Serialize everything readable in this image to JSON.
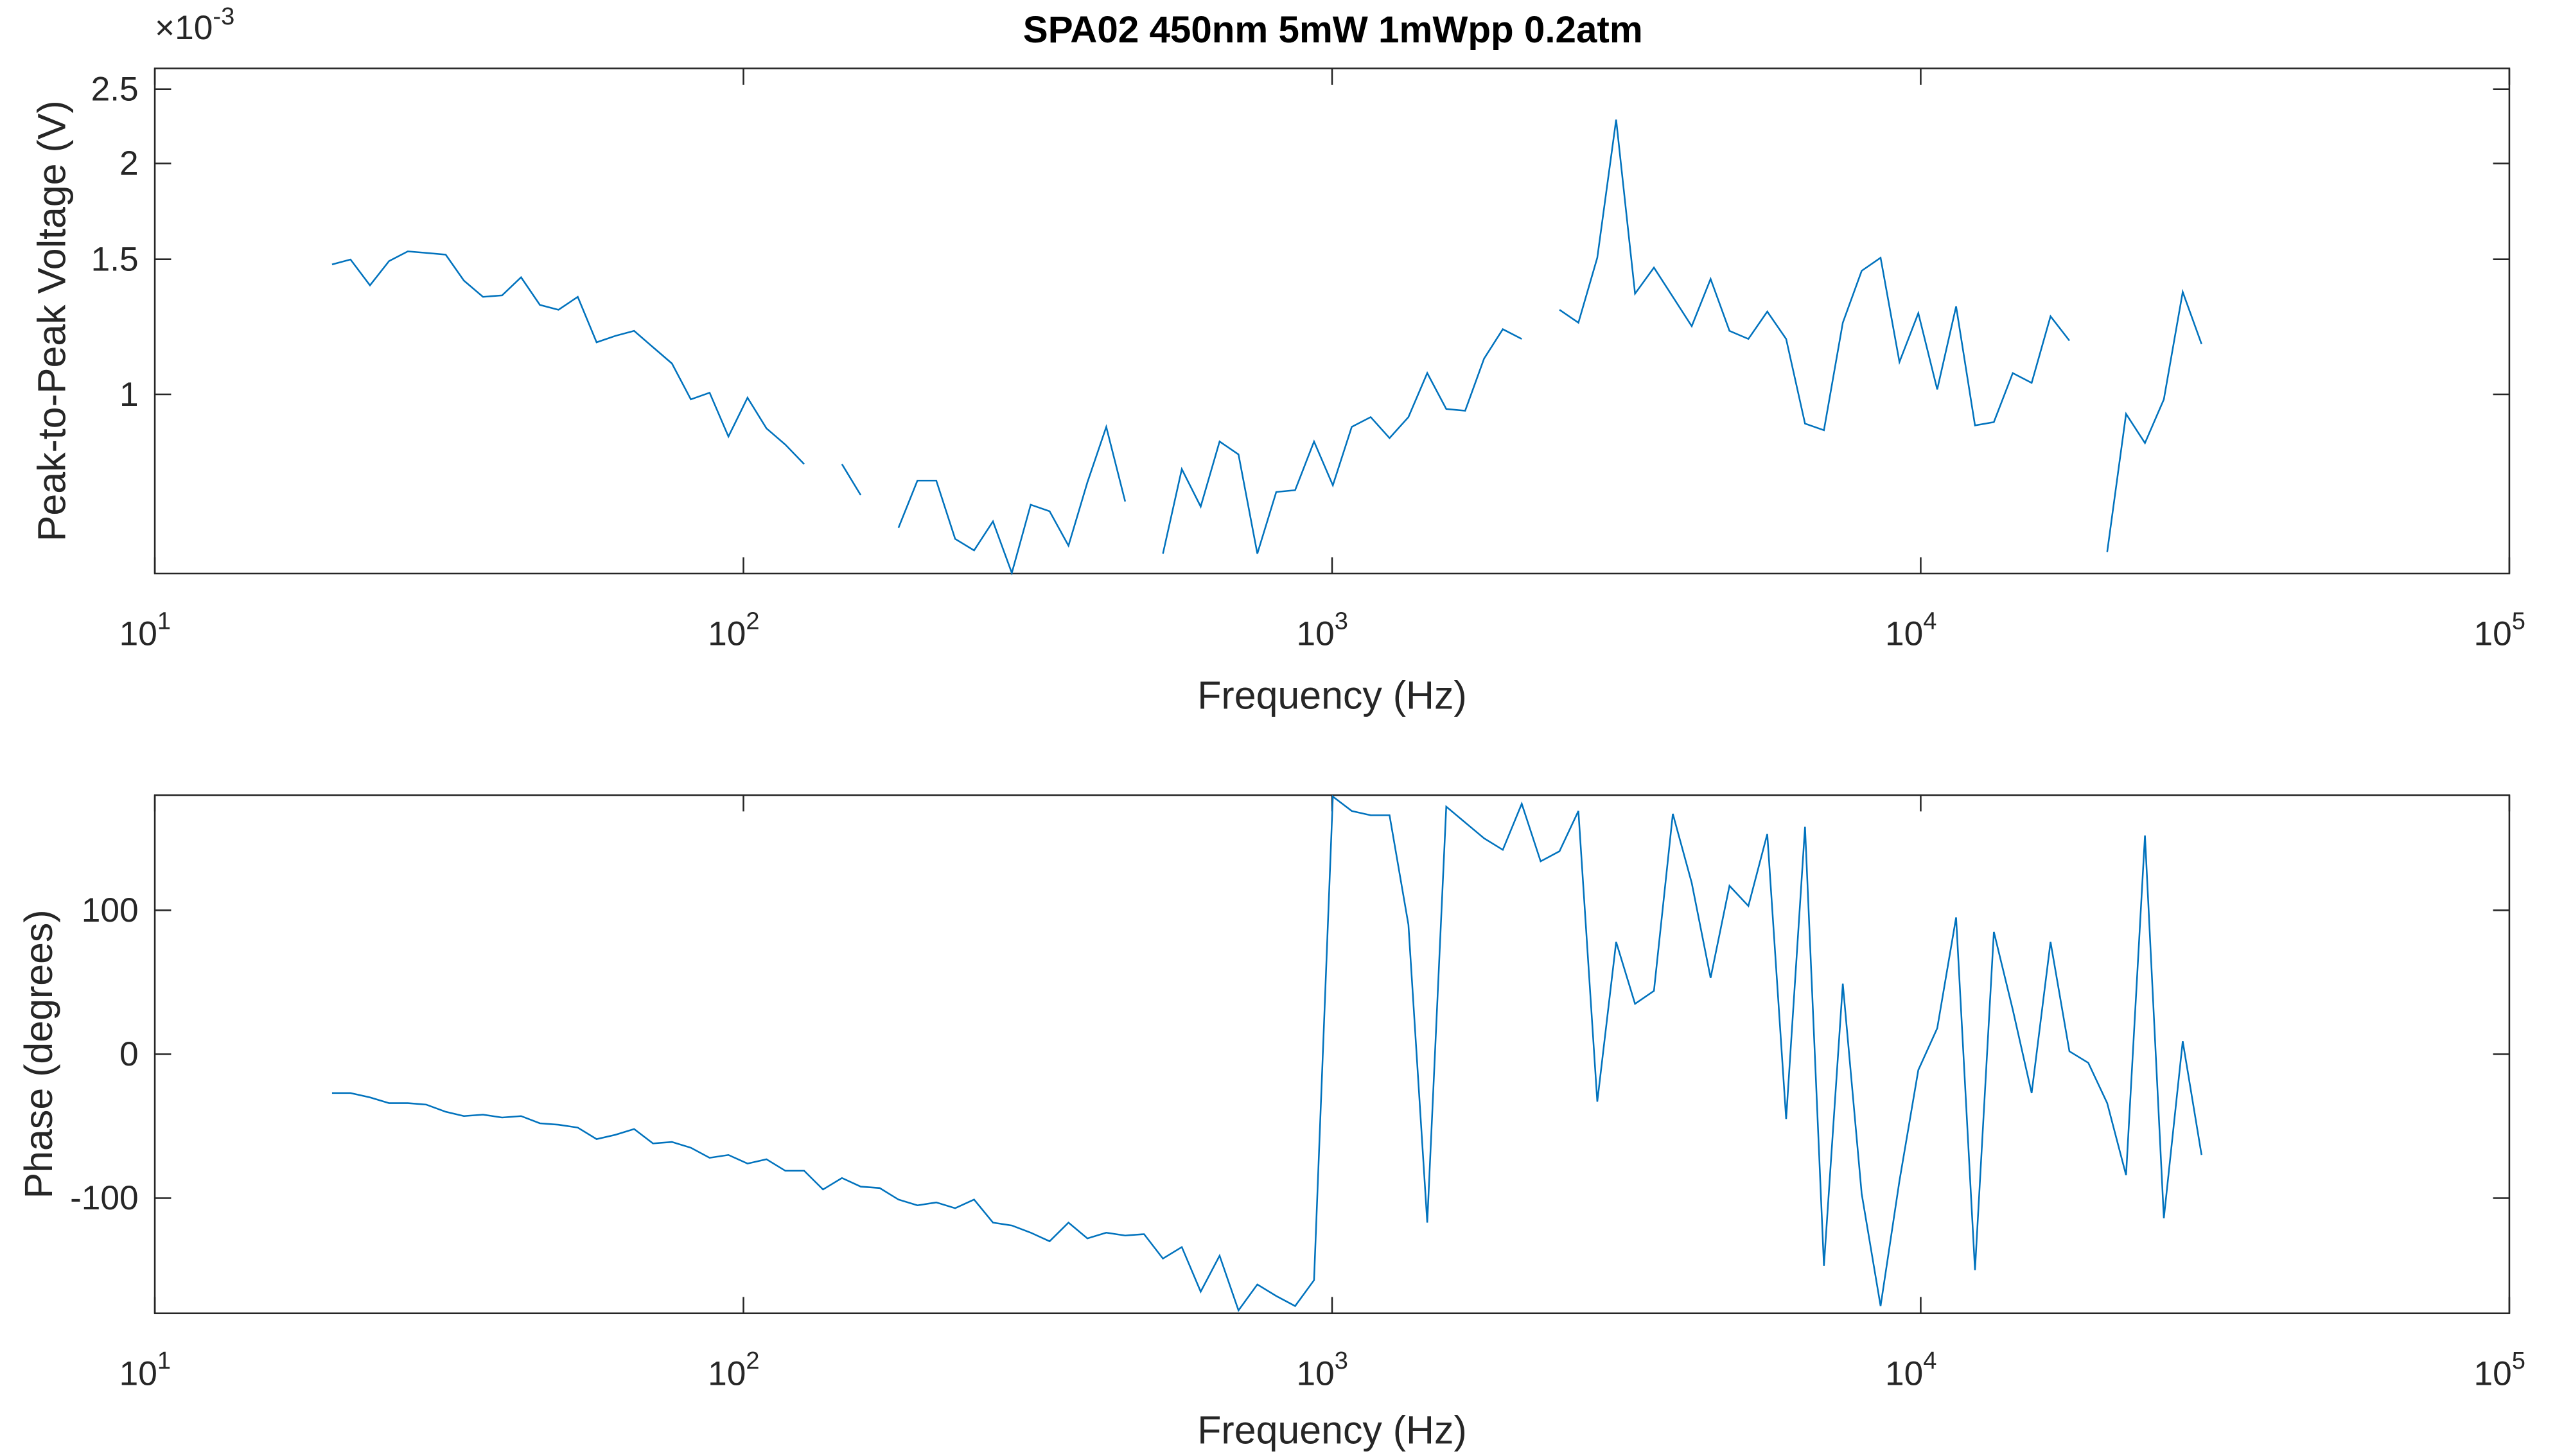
{
  "chart_data": [
    {
      "type": "line",
      "title": "SPA02 450nm 5mW 1mWpp 0.2atm",
      "x_label": "Frequency (Hz)",
      "y_label": "Peak-to-Peak Voltage (V)",
      "log_x": true,
      "log_y": true,
      "color": "#0072bd",
      "y_multiplier": {
        "label": "×10",
        "exponent": "-3"
      },
      "xlim": [
        10,
        100000
      ],
      "xticks": [
        {
          "value": 10,
          "label": "10",
          "exponent": "1"
        },
        {
          "value": 100,
          "label": "10",
          "exponent": "2"
        },
        {
          "value": 1000,
          "label": "10",
          "exponent": "3"
        },
        {
          "value": 10000,
          "label": "10",
          "exponent": "4"
        },
        {
          "value": 100000,
          "label": "10",
          "exponent": "5"
        }
      ],
      "ylim": [
        0.000584,
        0.00266
      ],
      "yticks": [
        {
          "value": 0.001,
          "label": "1"
        },
        {
          "value": 0.0015,
          "label": "1.5"
        },
        {
          "value": 0.002,
          "label": "2"
        },
        {
          "value": 0.0025,
          "label": "2.5"
        }
      ],
      "x": [
        20.0,
        21.5,
        23.2,
        25.0,
        26.9,
        28.9,
        31.2,
        33.5,
        36.1,
        38.9,
        41.9,
        45.1,
        48.5,
        52.3,
        56.3,
        60.6,
        65.2,
        70.2,
        75.6,
        81.4,
        87.6,
        94.3,
        101.6,
        109.4,
        117.8,
        126.8,
        136.5,
        147.0,
        158.2,
        170.4,
        183.4,
        197.5,
        212.6,
        228.9,
        246.5,
        265.4,
        285.7,
        307.6,
        331.2,
        356.6,
        384.0,
        413.4,
        445.1,
        479.2,
        516.0,
        555.5,
        598.1,
        644.0,
        693.4,
        746.5,
        803.8,
        865.4,
        931.8,
        1003,
        1080,
        1163,
        1252,
        1348,
        1451,
        1563,
        1683,
        1812,
        1950,
        2100,
        2261,
        2434,
        2621,
        2822,
        3038,
        3271,
        3522,
        3792,
        4083,
        4396,
        4733,
        5096,
        5487,
        5907,
        6360,
        6848,
        7373,
        7938,
        8547,
        9202,
        9907,
        10667,
        11485,
        12365,
        13313,
        14334,
        15433,
        16616,
        17890,
        19262,
        20739,
        22329,
        24041,
        25884,
        27869,
        30000
      ],
      "values": [
        0.001477,
        0.001499,
        0.001387,
        0.001492,
        0.001536,
        0.001529,
        0.001521,
        0.001407,
        0.00134,
        0.001346,
        0.001421,
        0.001308,
        0.001289,
        0.00134,
        0.001169,
        0.001192,
        0.00121,
        0.001152,
        0.001097,
        0.000985,
        0.001005,
        0.000881,
        0.00099,
        0.000903,
        0.00086,
        0.000811,
        null,
        0.000811,
        0.000739,
        null,
        0.00067,
        0.000772,
        0.000772,
        0.000648,
        0.000626,
        0.000683,
        0.000585,
        0.000718,
        0.000704,
        0.000635,
        0.000768,
        0.000907,
        0.000725,
        null,
        0.00062,
        0.000799,
        0.000714,
        0.000868,
        0.000835,
        0.00062,
        0.000746,
        0.00075,
        0.000868,
        0.000761,
        0.000907,
        0.000934,
        0.000877,
        0.000934,
        0.001066,
        0.000957,
        0.000952,
        0.001113,
        0.001216,
        0.001181,
        null,
        0.001289,
        0.00124,
        0.001507,
        0.002281,
        0.001353,
        0.001463,
        0.00134,
        0.001227,
        0.001414,
        0.00121,
        0.001181,
        0.001282,
        0.001181,
        0.000916,
        0.000898,
        0.00124,
        0.001449,
        0.001507,
        0.001102,
        0.001276,
        0.001015,
        0.001302,
        0.000911,
        0.00092,
        0.001066,
        0.001035,
        0.001264,
        0.001175,
        null,
        0.000623,
        0.000943,
        0.000864,
        0.000985,
        0.00136,
        0.001163
      ]
    },
    {
      "type": "line",
      "x_label": "Frequency (Hz)",
      "y_label": "Phase (degrees)",
      "log_x": true,
      "log_y": false,
      "color": "#0072bd",
      "xlim": [
        10,
        100000
      ],
      "xticks": [
        {
          "value": 10,
          "label": "10",
          "exponent": "1"
        },
        {
          "value": 100,
          "label": "10",
          "exponent": "2"
        },
        {
          "value": 1000,
          "label": "10",
          "exponent": "3"
        },
        {
          "value": 10000,
          "label": "10",
          "exponent": "4"
        },
        {
          "value": 100000,
          "label": "10",
          "exponent": "5"
        }
      ],
      "ylim": [
        -180,
        180
      ],
      "yticks": [
        -100,
        0,
        100
      ],
      "x": [
        20.0,
        21.5,
        23.2,
        25.0,
        26.9,
        28.9,
        31.2,
        33.5,
        36.1,
        38.9,
        41.9,
        45.1,
        48.5,
        52.3,
        56.3,
        60.6,
        65.2,
        70.2,
        75.6,
        81.4,
        87.6,
        94.3,
        101.6,
        109.4,
        117.8,
        126.8,
        136.5,
        147.0,
        158.2,
        170.4,
        183.4,
        197.5,
        212.6,
        228.9,
        246.5,
        265.4,
        285.7,
        307.6,
        331.2,
        356.6,
        384.0,
        413.4,
        445.1,
        479.2,
        516.0,
        555.5,
        598.1,
        644.0,
        693.4,
        746.5,
        803.8,
        865.4,
        931.8,
        1003,
        1080,
        1163,
        1252,
        1348,
        1451,
        1563,
        1683,
        1812,
        1950,
        2100,
        2261,
        2434,
        2621,
        2822,
        3038,
        3271,
        3522,
        3792,
        4083,
        4396,
        4733,
        5096,
        5487,
        5907,
        6360,
        6848,
        7373,
        7938,
        8547,
        9202,
        9907,
        10667,
        11485,
        12365,
        13313,
        14334,
        15433,
        16616,
        17890,
        19262,
        20739,
        22329,
        24041,
        25884,
        27869,
        30000
      ],
      "values": [
        -27,
        -27,
        -30,
        -34,
        -34,
        -35,
        -40,
        -43,
        -42,
        -44,
        -43,
        -48,
        -49,
        -51,
        -59,
        -56,
        -52,
        -62,
        -61,
        -65,
        -72,
        -70,
        -76,
        -73,
        -81,
        -81,
        -94,
        -86,
        -92,
        -93,
        -101,
        -105,
        -103,
        -107,
        -101,
        -117,
        -119,
        -124,
        -130,
        -117,
        -128,
        -124,
        -126,
        -125,
        -142,
        -134,
        -165,
        -140,
        -178,
        -160,
        -168,
        -175,
        -157,
        179,
        169,
        166,
        166,
        90,
        -117,
        172,
        161,
        150,
        142,
        174,
        134,
        141,
        169,
        -33,
        78,
        35,
        44,
        167,
        119,
        53,
        117,
        103,
        153,
        -45,
        158,
        -147,
        49,
        -97,
        -175,
        -88,
        -11,
        18,
        95,
        -150,
        85,
        31,
        -27,
        78,
        2,
        -6,
        -34,
        -84,
        152,
        -114,
        9,
        -70
      ]
    }
  ]
}
